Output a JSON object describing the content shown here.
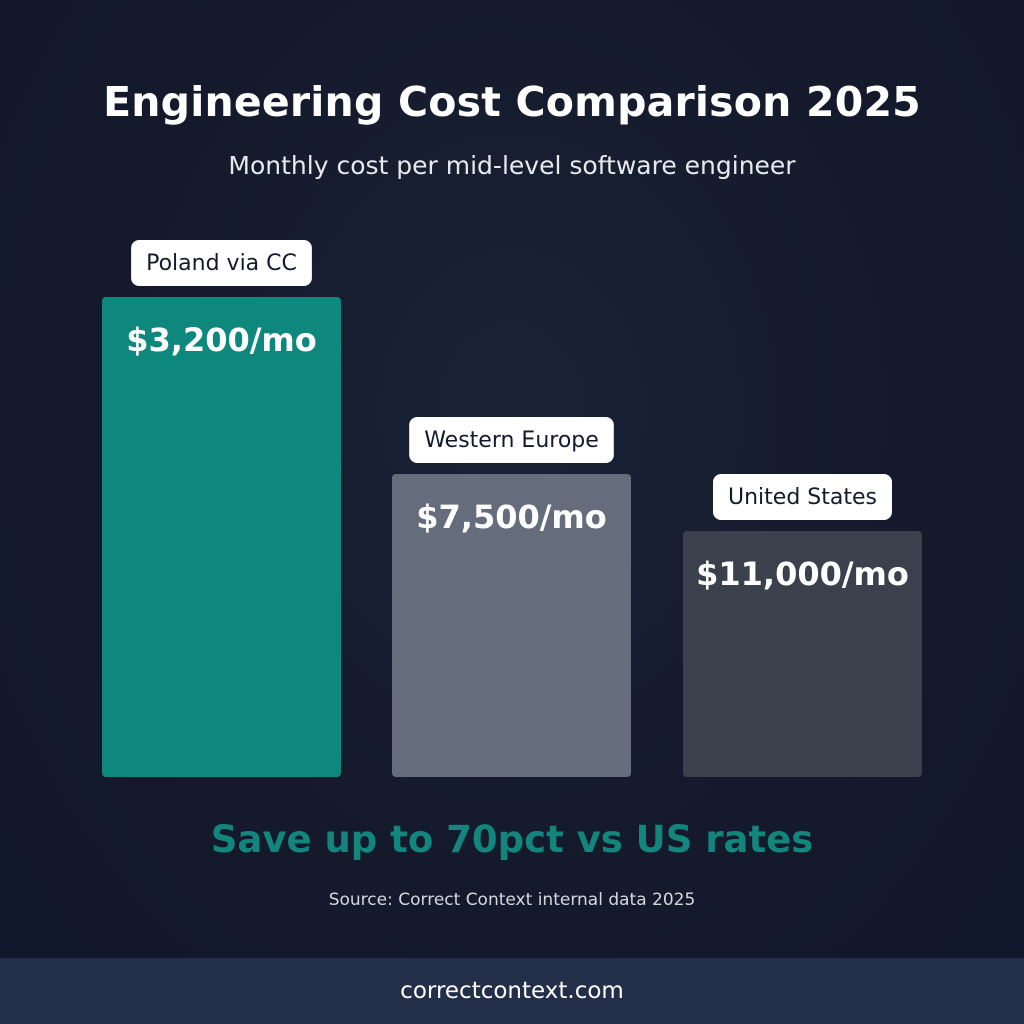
{
  "chart_data": {
    "type": "bar",
    "title": "Engineering Cost Comparison 2025",
    "subtitle": "Monthly cost per mid-level software engineer",
    "categories": [
      "Poland via CC",
      "Western Europe",
      "United States"
    ],
    "values": [
      3200,
      7500,
      11000
    ],
    "value_labels": [
      "$3,200/mo",
      "$7,500/mo",
      "$11,000/mo"
    ],
    "colors": [
      "#0e877d",
      "#656d7c",
      "#3a404c"
    ],
    "grid": false,
    "axes_shown": false
  },
  "tagline": "Save up to 70pct vs US rates",
  "tagline_color": "#12857c",
  "source": "Source: Correct Context internal data 2025",
  "footer": {
    "url": "correctcontext.com"
  }
}
